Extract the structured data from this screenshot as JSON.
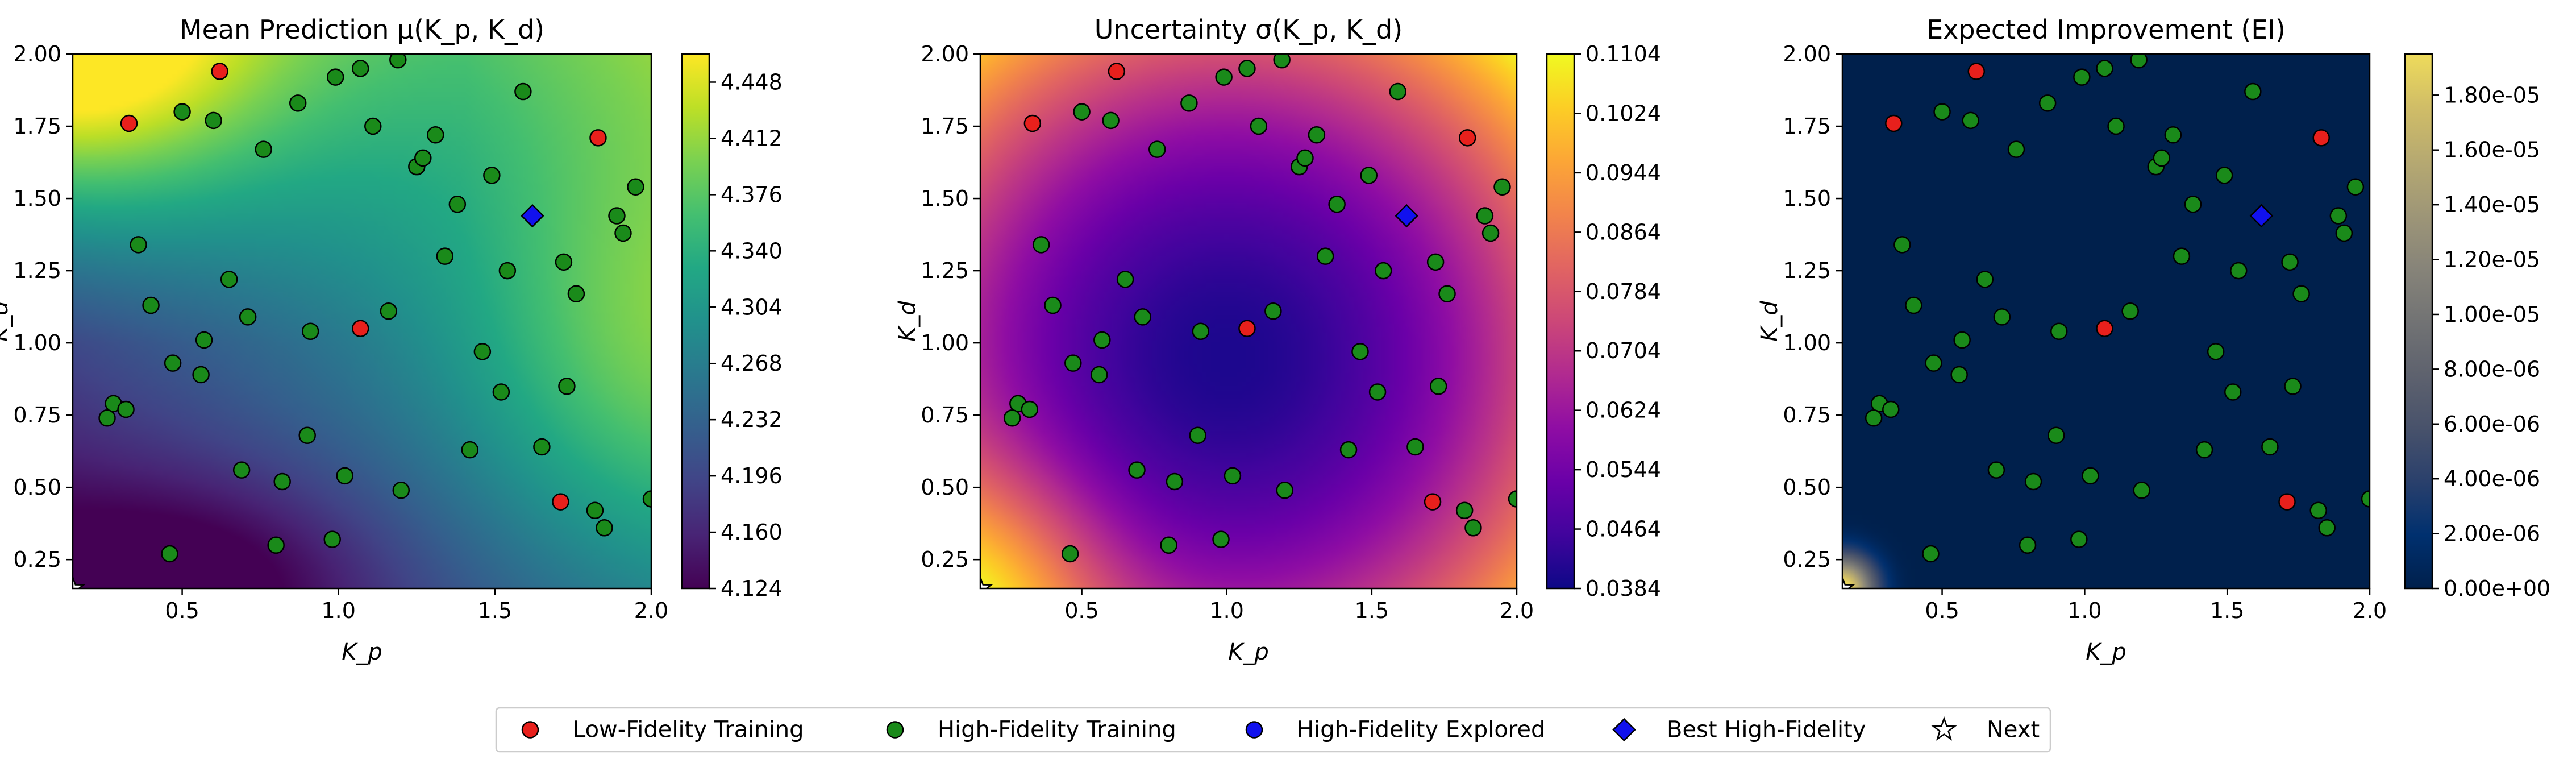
{
  "chart_data": [
    {
      "type": "heatmap",
      "title": "Mean Prediction μ(K_p, K_d)",
      "xlabel": "K_p",
      "ylabel": "K_d",
      "xlim": [
        0.15,
        2.0
      ],
      "ylim": [
        0.15,
        2.0
      ],
      "xticks": [
        "0.5",
        "1.0",
        "1.5",
        "2.0"
      ],
      "yticks": [
        "0.25",
        "0.50",
        "0.75",
        "1.00",
        "1.25",
        "1.50",
        "1.75",
        "2.00"
      ],
      "colormap": "viridis",
      "colorbar": {
        "min": 4.124,
        "max": 4.466,
        "ticks": [
          "4.124",
          "4.160",
          "4.196",
          "4.232",
          "4.268",
          "4.304",
          "4.340",
          "4.376",
          "4.412",
          "4.448"
        ]
      }
    },
    {
      "type": "heatmap",
      "title": "Uncertainty σ(K_p, K_d)",
      "xlabel": "K_p",
      "ylabel": "K_d",
      "xlim": [
        0.15,
        2.0
      ],
      "ylim": [
        0.15,
        2.0
      ],
      "xticks": [
        "0.5",
        "1.0",
        "1.5",
        "2.0"
      ],
      "yticks": [
        "0.25",
        "0.50",
        "0.75",
        "1.00",
        "1.25",
        "1.50",
        "1.75",
        "2.00"
      ],
      "colormap": "plasma",
      "colorbar": {
        "min": 0.0384,
        "max": 0.1104,
        "ticks": [
          "0.0384",
          "0.0464",
          "0.0544",
          "0.0624",
          "0.0704",
          "0.0784",
          "0.0864",
          "0.0944",
          "0.1024",
          "0.1104"
        ]
      }
    },
    {
      "type": "heatmap",
      "title": "Expected Improvement (EI)",
      "xlabel": "K_p",
      "ylabel": "K_d",
      "xlim": [
        0.15,
        2.0
      ],
      "ylim": [
        0.15,
        2.0
      ],
      "xticks": [
        "0.5",
        "1.0",
        "1.5",
        "2.0"
      ],
      "yticks": [
        "0.25",
        "0.50",
        "0.75",
        "1.00",
        "1.25",
        "1.50",
        "1.75",
        "2.00"
      ],
      "colormap": "cividis",
      "colorbar": {
        "min": 0.0,
        "max": 1.95e-05,
        "ticks": [
          "0.00e+00",
          "2.00e-06",
          "4.00e-06",
          "6.00e-06",
          "8.00e-06",
          "1.00e-05",
          "1.20e-05",
          "1.40e-05",
          "1.60e-05",
          "1.80e-05"
        ]
      }
    }
  ],
  "points": {
    "low_fidelity": [
      [
        0.33,
        1.76
      ],
      [
        0.62,
        1.94
      ],
      [
        1.07,
        1.05
      ],
      [
        1.83,
        1.71
      ],
      [
        1.71,
        0.45
      ]
    ],
    "high_fidelity": [
      [
        0.5,
        1.8
      ],
      [
        0.6,
        1.77
      ],
      [
        0.76,
        1.67
      ],
      [
        0.87,
        1.83
      ],
      [
        0.99,
        1.92
      ],
      [
        1.07,
        1.95
      ],
      [
        1.11,
        1.75
      ],
      [
        1.19,
        1.98
      ],
      [
        1.25,
        1.61
      ],
      [
        1.27,
        1.64
      ],
      [
        1.31,
        1.72
      ],
      [
        1.49,
        1.58
      ],
      [
        1.59,
        1.87
      ],
      [
        1.38,
        1.48
      ],
      [
        1.89,
        1.44
      ],
      [
        1.95,
        1.54
      ],
      [
        1.91,
        1.38
      ],
      [
        0.36,
        1.34
      ],
      [
        1.34,
        1.3
      ],
      [
        0.65,
        1.22
      ],
      [
        1.54,
        1.25
      ],
      [
        1.72,
        1.28
      ],
      [
        1.76,
        1.17
      ],
      [
        0.4,
        1.13
      ],
      [
        1.16,
        1.11
      ],
      [
        0.71,
        1.09
      ],
      [
        0.57,
        1.01
      ],
      [
        0.91,
        1.04
      ],
      [
        0.47,
        0.93
      ],
      [
        1.46,
        0.97
      ],
      [
        0.56,
        0.89
      ],
      [
        0.28,
        0.79
      ],
      [
        0.32,
        0.77
      ],
      [
        0.26,
        0.74
      ],
      [
        1.52,
        0.83
      ],
      [
        1.73,
        0.85
      ],
      [
        0.9,
        0.68
      ],
      [
        1.42,
        0.63
      ],
      [
        1.65,
        0.64
      ],
      [
        0.69,
        0.56
      ],
      [
        1.02,
        0.54
      ],
      [
        0.82,
        0.52
      ],
      [
        1.2,
        0.49
      ],
      [
        2.0,
        0.46
      ],
      [
        1.82,
        0.42
      ],
      [
        1.85,
        0.36
      ],
      [
        0.46,
        0.27
      ],
      [
        0.8,
        0.3
      ],
      [
        0.98,
        0.32
      ]
    ],
    "best_high_fidelity": [
      1.62,
      1.44
    ],
    "next": [
      0.15,
      0.15
    ]
  },
  "legend": {
    "placement": "bottom-center",
    "items": [
      {
        "label": "Low-Fidelity Training",
        "marker": "circle",
        "color": "#e8201c"
      },
      {
        "label": "High-Fidelity Training",
        "marker": "circle",
        "color": "#1a8a1a"
      },
      {
        "label": "High-Fidelity Explored",
        "marker": "circle",
        "color": "#1111ee"
      },
      {
        "label": "Best High-Fidelity",
        "marker": "diamond",
        "color": "#1111ee"
      },
      {
        "label": "Next",
        "marker": "star",
        "color": "#ffffff"
      }
    ]
  }
}
